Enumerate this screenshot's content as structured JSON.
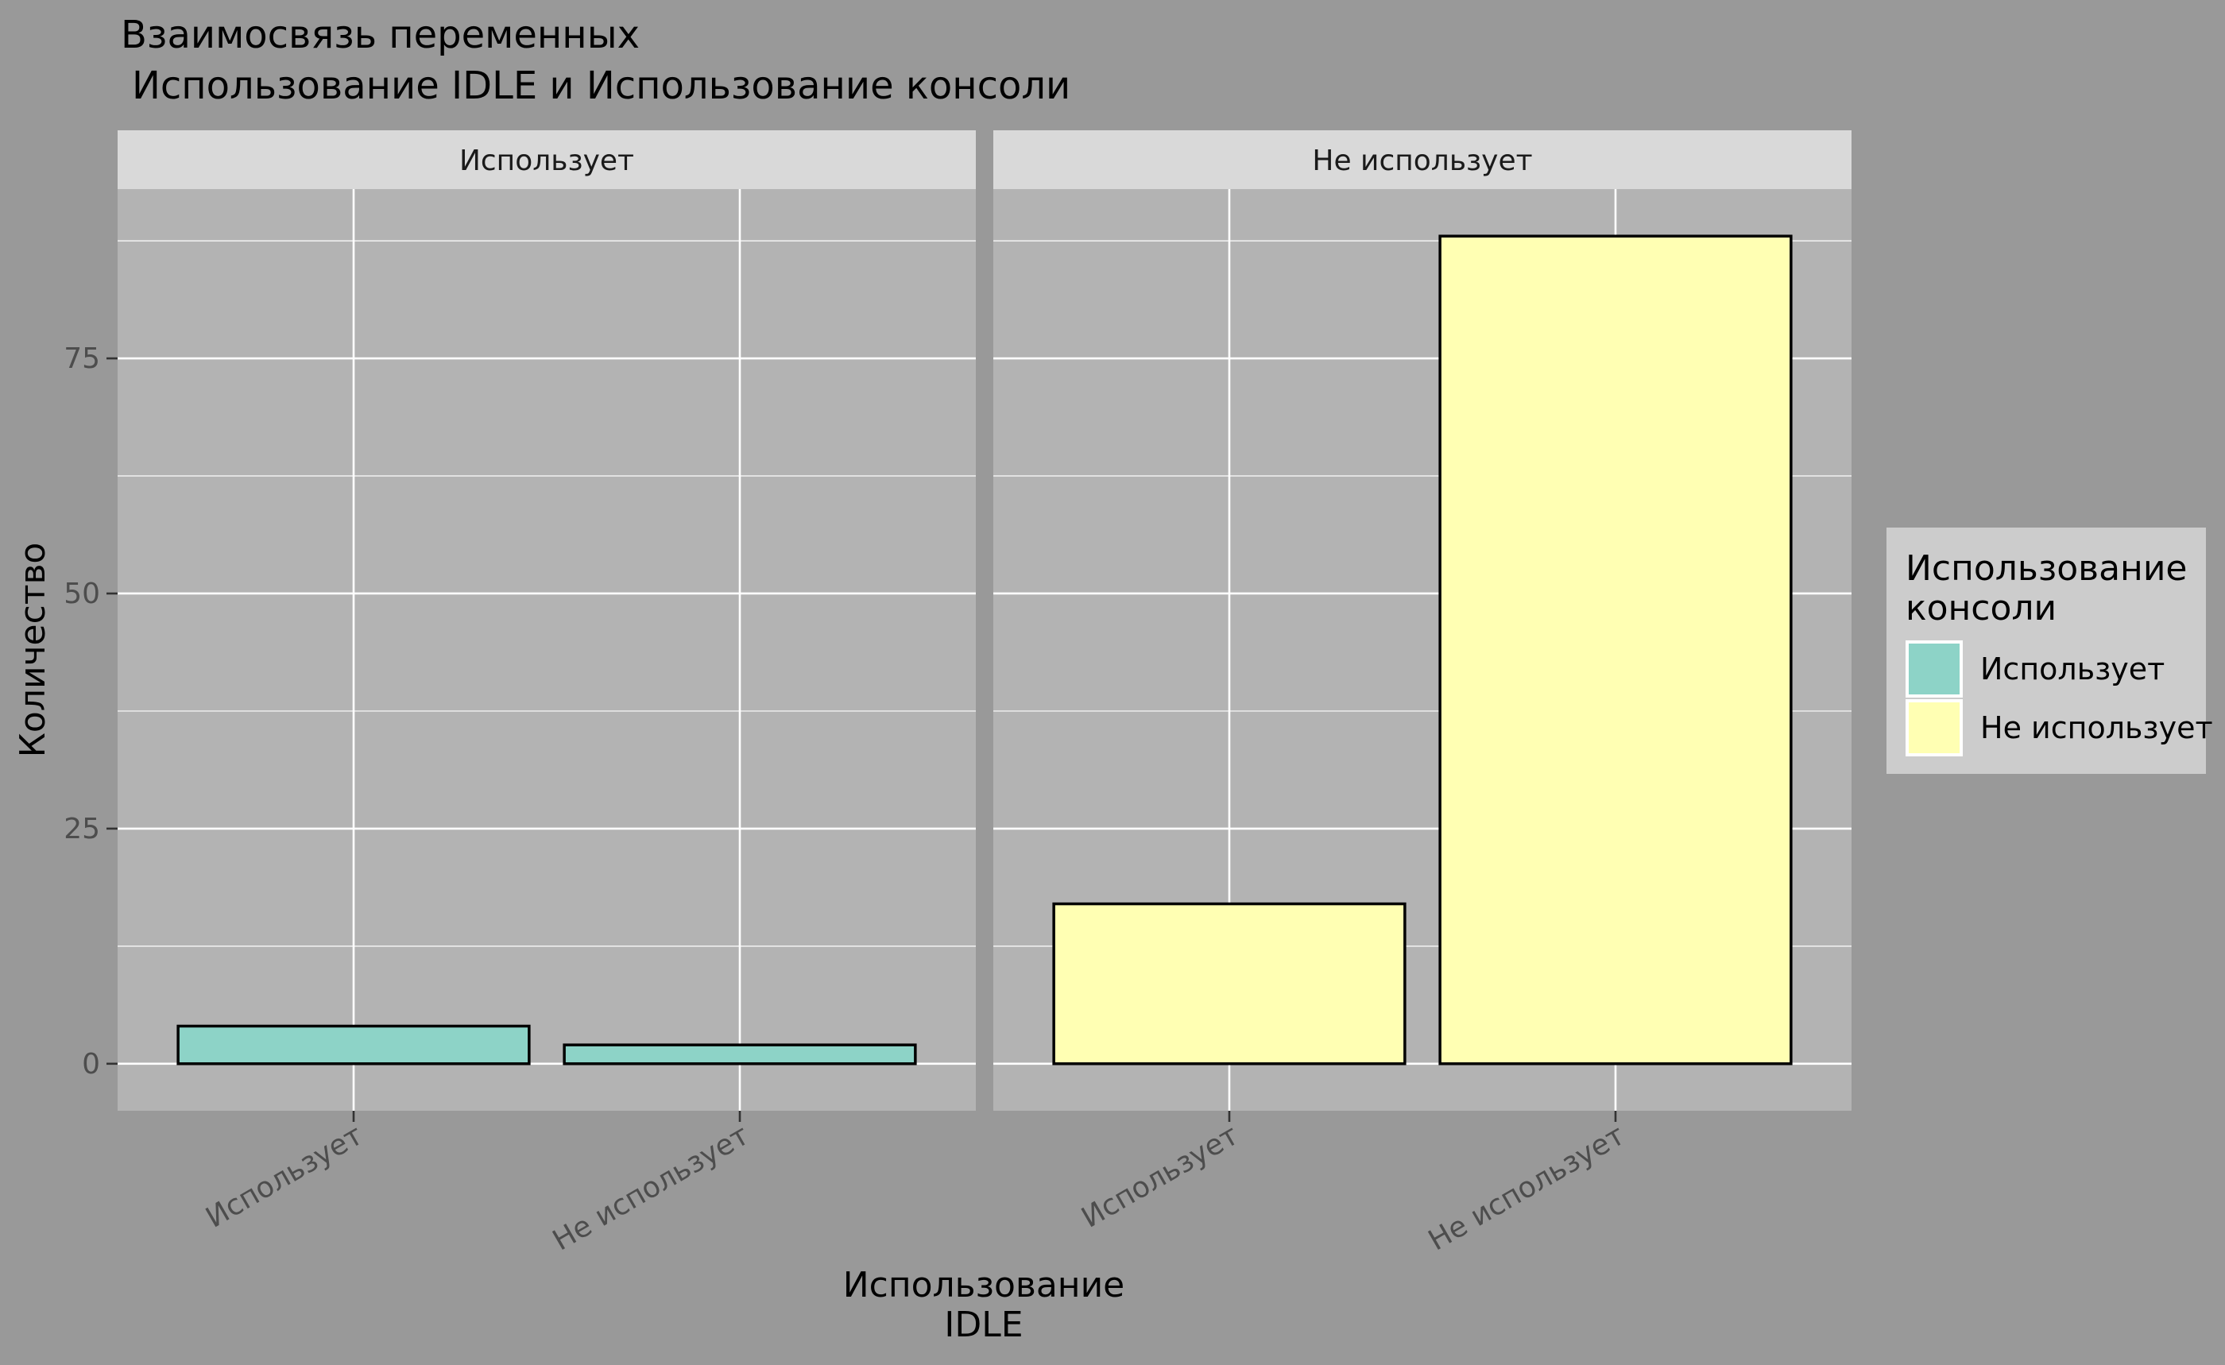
{
  "colors": {
    "page_bg": "#999999",
    "panel_bg": "#B3B3B3",
    "strip_bg": "#D9D9D9",
    "legend_bg": "#CCCCCC",
    "grid": "#FFFFFF",
    "fill_uses": "#8DD3C7",
    "fill_not_uses": "#FFFFB3",
    "bar_outline": "#000000",
    "tick_text": "#4D4D4D"
  },
  "chart_data": {
    "type": "bar",
    "title_line1": "Взаимосвязь переменных",
    "title_line2": "Использование IDLE и Использование консоли",
    "xlabel_line1": "Использование",
    "xlabel_line2": "IDLE",
    "ylabel": "Количество",
    "ylim": [
      -5,
      93
    ],
    "yticks": [
      0,
      25,
      50,
      75
    ],
    "categories": [
      "Использует",
      "Не использует"
    ],
    "legend": {
      "title_line1": "Использование",
      "title_line2": "консоли",
      "entries": [
        {
          "label": "Использует",
          "fill_key": "fill_uses"
        },
        {
          "label": "Не использует",
          "fill_key": "fill_not_uses"
        }
      ]
    },
    "facets": [
      {
        "label": "Использует",
        "fill_key": "fill_uses",
        "values": [
          4,
          2
        ]
      },
      {
        "label": "Не использует",
        "fill_key": "fill_not_uses",
        "values": [
          17,
          88
        ]
      }
    ]
  }
}
